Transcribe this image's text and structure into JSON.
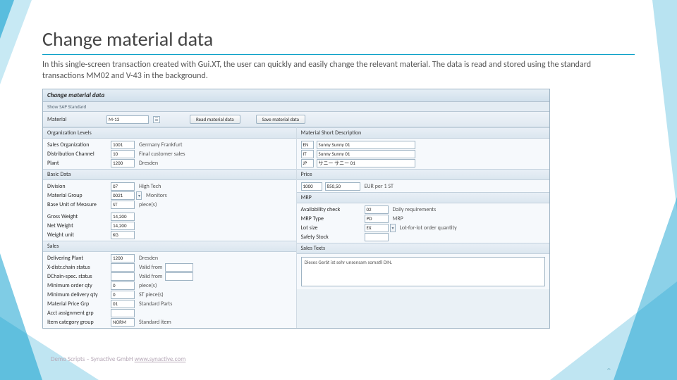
{
  "colors": {
    "accent": "#0aa0c8",
    "panel_bg": "#eaf1f6",
    "border": "#9fb4c4"
  },
  "slide": {
    "title": "Change material data",
    "paragraph": "In this single-screen transaction created with Gui.XT, the user can quickly and easily change the relevant material. The data is read and stored using the standard transactions MM02 and V-43 in the background."
  },
  "app": {
    "title": "Change material data",
    "toolbar_link": "Show SAP Standard"
  },
  "topbar": {
    "material_label": "Material",
    "material_value": "M-13",
    "read_btn": "Read material data",
    "save_btn": "Save material data"
  },
  "org": {
    "header": "Organization Levels",
    "rows": [
      {
        "label": "Sales Organization",
        "code": "1001",
        "desc": "Germany Frankfurt"
      },
      {
        "label": "Distribution Channel",
        "code": "10",
        "desc": "Final customer sales"
      },
      {
        "label": "Plant",
        "code": "1200",
        "desc": "Dresden"
      }
    ]
  },
  "basic": {
    "header": "Basic Data",
    "rows": [
      {
        "label": "Division",
        "code": "07",
        "desc": "High Tech"
      },
      {
        "label": "Material Group",
        "code": "0021",
        "desc": "Monitors",
        "dd": true
      },
      {
        "label": "Base Unit of Measure",
        "code": "ST",
        "desc": "piece(s)"
      }
    ],
    "rows2": [
      {
        "label": "Gross Weight",
        "code": "14,200"
      },
      {
        "label": "Net Weight",
        "code": "14,200"
      },
      {
        "label": "Weight unit",
        "code": "KG"
      }
    ]
  },
  "sales": {
    "header": "Sales",
    "rows": [
      {
        "label": "Delivering Plant",
        "code": "1200",
        "desc": "Dresden"
      },
      {
        "label": "X-distr.chain status",
        "code": "",
        "desc": "Valid from",
        "v2": ""
      },
      {
        "label": "DChain-spec. status",
        "code": "",
        "desc": "Valid from",
        "v2": ""
      },
      {
        "label": "Minimum order qty",
        "code": "0",
        "desc": "piece(s)"
      },
      {
        "label": "Minimum delivery qty",
        "code": "0",
        "desc": "ST  piece(s)"
      },
      {
        "label": "Material Price Grp",
        "code": "01",
        "desc": "Standard Parts"
      },
      {
        "label": "Acct assignment grp",
        "code": ""
      },
      {
        "label": "Item category group",
        "code": "NORM",
        "desc": "Standard item"
      }
    ]
  },
  "desc": {
    "header": "Material Short Description",
    "rows": [
      {
        "lang": "EN",
        "text": "Sunny Sunny 01"
      },
      {
        "lang": "IT",
        "text": "Sunny Sunny 01"
      },
      {
        "lang": "JP",
        "text": "サニー サニー 01"
      }
    ]
  },
  "price": {
    "header": "Price",
    "rows": [
      {
        "label": "1000",
        "val": "850,50",
        "unit": "EUR per 1 ST"
      }
    ]
  },
  "mrp": {
    "header": "MRP",
    "rows": [
      {
        "label": "Availability check",
        "code": "02",
        "desc": "Daily requirements"
      },
      {
        "label": "MRP Type",
        "code": "PD",
        "desc": "MRP"
      },
      {
        "label": "Lot size",
        "code": "EX",
        "desc": "Lot-for-lot order quantity",
        "dd": true
      },
      {
        "label": "Safety Stock",
        "code": ""
      }
    ]
  },
  "salestext": {
    "header": "Sales Texts",
    "text": "Dieses Gerät ist sehr unsensam somatil DIN."
  },
  "footer": {
    "text": "Demo Scripts – Synactive GmbH   ",
    "link": "www.synactive.com"
  }
}
